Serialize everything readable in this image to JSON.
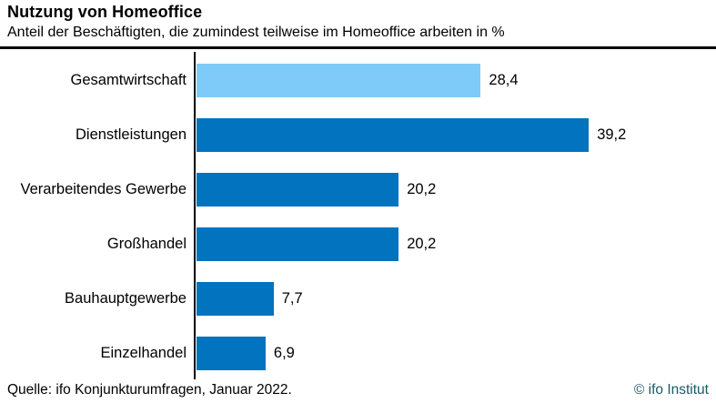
{
  "header": {
    "title": "Nutzung von Homeoffice",
    "subtitle": "Anteil der Beschäftigten, die zumindest teilweise im Homeoffice arbeiten in %"
  },
  "chart_data": {
    "type": "bar",
    "orientation": "horizontal",
    "title": "Nutzung von Homeoffice",
    "subtitle": "Anteil der Beschäftigten, die zumindest teilweise im Homeoffice arbeiten in %",
    "xlabel": "",
    "ylabel": "",
    "unit": "%",
    "grid": false,
    "legend": "none",
    "xlim": [
      0,
      52
    ],
    "categories": [
      "Gesamtwirtschaft",
      "Dienstleistungen",
      "Verarbeitendes Gewerbe",
      "Großhandel",
      "Bauhauptgewerbe",
      "Einzelhandel"
    ],
    "values": [
      28.4,
      39.2,
      20.2,
      20.2,
      7.7,
      6.9
    ],
    "value_labels": [
      "28,4",
      "39,2",
      "20,2",
      "20,2",
      "7,7",
      "6,9"
    ],
    "bar_colors": [
      "#7ECBF9",
      "#0173BF",
      "#0173BF",
      "#0173BF",
      "#0173BF",
      "#0173BF"
    ]
  },
  "footer": {
    "source": "Quelle: ifo Konjunkturumfragen, Januar 2022.",
    "copyright": "© ifo Institut"
  },
  "colors": {
    "highlight_bar": "#7ECBF9",
    "default_bar": "#0173BF",
    "rule": "#000000",
    "text": "#000000",
    "copyright_text": "#1b5a66"
  }
}
